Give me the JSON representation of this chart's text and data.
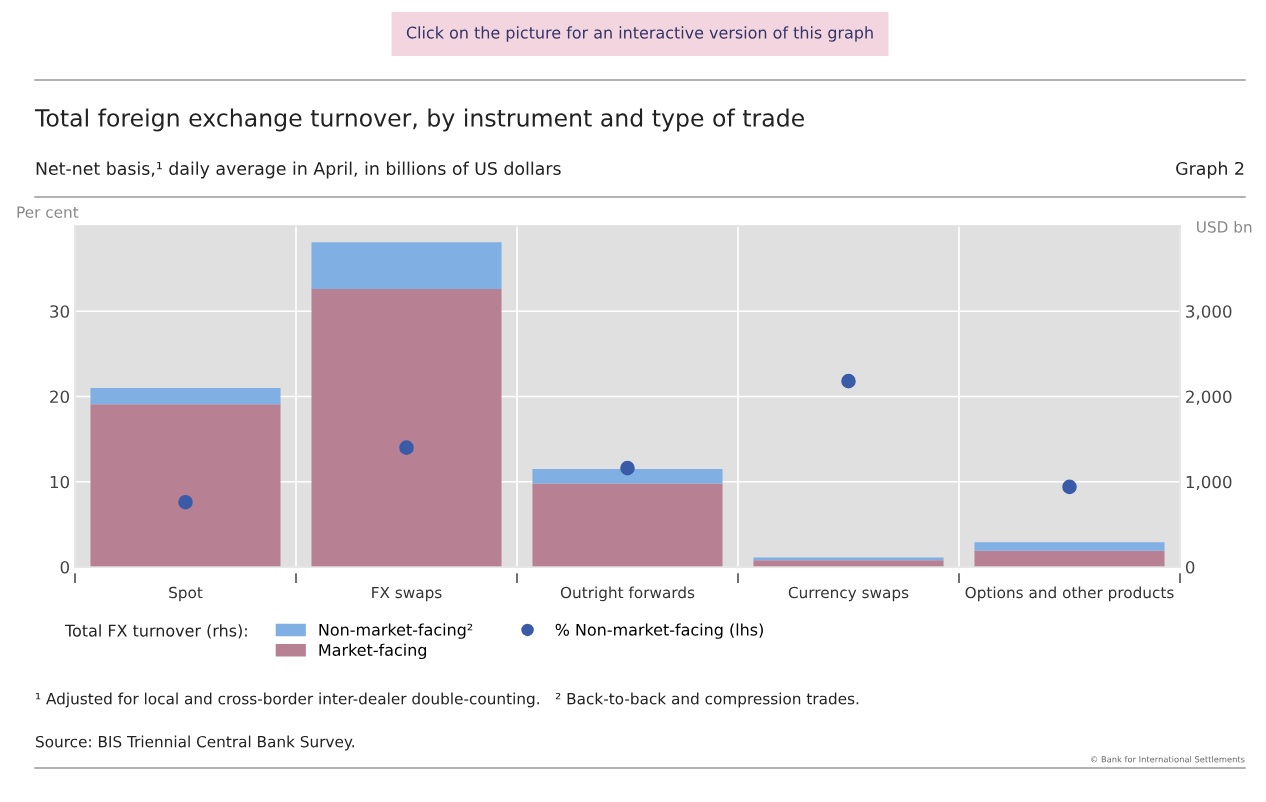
{
  "chart_data": {
    "type": "bar",
    "title": "Total foreign exchange turnover, by instrument and type of trade",
    "subtitle": "Net-net basis,¹ daily average in April, in billions of US dollars",
    "ylabel": "Per cent",
    "y2label": "USD bn",
    "legend_title": "Total FX turnover (rhs):",
    "categories": [
      "Spot",
      "FX swaps",
      "Outright forwards",
      "Currency swaps",
      "Options and other products"
    ],
    "stacked": true,
    "series": [
      {
        "name": "Market-facing",
        "color": "#b78193",
        "axis": "y2",
        "values": [
          1910,
          3260,
          980,
          80,
          190
        ]
      },
      {
        "name": "Non-market-facing²",
        "color": "#7fafe3",
        "axis": "y2",
        "values": [
          190,
          550,
          170,
          30,
          100
        ]
      },
      {
        "name": "% Non-market-facing (lhs)",
        "type": "scatter",
        "color": "#3a5ba8",
        "axis": "y",
        "values": [
          7.6,
          14.0,
          11.6,
          21.8,
          9.4
        ]
      }
    ],
    "ylim": [
      0,
      40
    ],
    "yticks": [
      0,
      10,
      20,
      30
    ],
    "y2lim": [
      0,
      4000
    ],
    "y2ticks": [
      0,
      {
        "value": 1000,
        "label": "1,000"
      },
      {
        "value": 2000,
        "label": "2,000"
      },
      {
        "value": 3000,
        "label": "3,000"
      }
    ],
    "grid": true,
    "legend": "bottom",
    "marker": "circle",
    "annotations": [
      "Click on the picture for an interactive version of this graph",
      "Graph 2",
      "¹ Adjusted for local and cross-border inter-dealer double-counting.   ² Back-to-back and compression trades.",
      "Source: BIS Triennial Central Bank Survey.",
      "© Bank for International Settlements"
    ]
  }
}
